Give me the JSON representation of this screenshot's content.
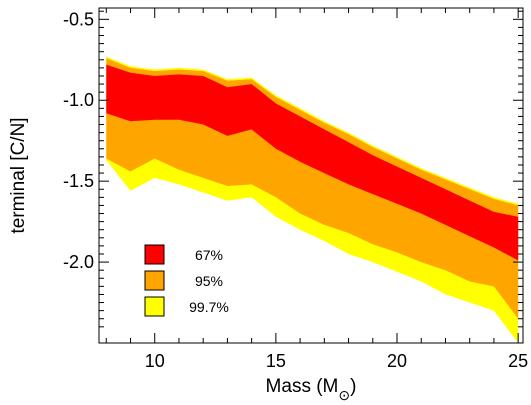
{
  "chart_data": {
    "type": "area",
    "xlabel": "Mass (M",
    "xlabel_subscript": "⊙",
    "xlabel_suffix": ")",
    "ylabel": "terminal [C/N]",
    "xlim": [
      7.7,
      25.2
    ],
    "ylim": [
      -2.5,
      -0.43
    ],
    "xticks": [
      10,
      15,
      20,
      25
    ],
    "xtick_labels": [
      "10",
      "15",
      "20",
      "25"
    ],
    "yticks": [
      -2.0,
      -1.5,
      -1.0,
      -0.5
    ],
    "ytick_labels": [
      "-2.0",
      "-1.5",
      "-1.0",
      "-0.5"
    ],
    "grid": false,
    "legend_position": "bottom-left",
    "x": [
      8,
      9,
      10,
      11,
      12,
      13,
      14,
      15,
      16,
      17,
      18,
      19,
      20,
      21,
      22,
      23,
      24,
      25
    ],
    "series": [
      {
        "name": "99.7%",
        "color": "#ffff00",
        "upper": [
          -0.73,
          -0.79,
          -0.81,
          -0.8,
          -0.81,
          -0.87,
          -0.86,
          -0.97,
          -1.05,
          -1.13,
          -1.2,
          -1.28,
          -1.35,
          -1.42,
          -1.48,
          -1.54,
          -1.6,
          -1.64
        ],
        "lower": [
          -1.37,
          -1.56,
          -1.48,
          -1.52,
          -1.57,
          -1.62,
          -1.6,
          -1.72,
          -1.8,
          -1.87,
          -1.95,
          -2.0,
          -2.06,
          -2.12,
          -2.2,
          -2.25,
          -2.3,
          -2.5
        ]
      },
      {
        "name": "95%",
        "color": "#ffa500",
        "upper": [
          -0.74,
          -0.8,
          -0.82,
          -0.81,
          -0.82,
          -0.88,
          -0.87,
          -0.98,
          -1.06,
          -1.14,
          -1.21,
          -1.29,
          -1.36,
          -1.43,
          -1.49,
          -1.55,
          -1.61,
          -1.65
        ],
        "lower": [
          -1.36,
          -1.44,
          -1.36,
          -1.43,
          -1.48,
          -1.53,
          -1.52,
          -1.6,
          -1.7,
          -1.77,
          -1.82,
          -1.89,
          -1.94,
          -2.0,
          -2.05,
          -2.12,
          -2.15,
          -2.35
        ]
      },
      {
        "name": "67%",
        "color": "#ff0000",
        "upper": [
          -0.78,
          -0.83,
          -0.85,
          -0.84,
          -0.85,
          -0.92,
          -0.9,
          -1.02,
          -1.1,
          -1.18,
          -1.26,
          -1.34,
          -1.41,
          -1.48,
          -1.55,
          -1.62,
          -1.69,
          -1.72
        ],
        "lower": [
          -1.08,
          -1.13,
          -1.12,
          -1.12,
          -1.15,
          -1.22,
          -1.18,
          -1.3,
          -1.38,
          -1.45,
          -1.52,
          -1.58,
          -1.64,
          -1.7,
          -1.77,
          -1.84,
          -1.91,
          -1.99
        ]
      }
    ],
    "legend": [
      {
        "label": "67%",
        "color": "#ff0000"
      },
      {
        "label": "95%",
        "color": "#ffa500"
      },
      {
        "label": "99.7%",
        "color": "#ffff00"
      }
    ]
  }
}
